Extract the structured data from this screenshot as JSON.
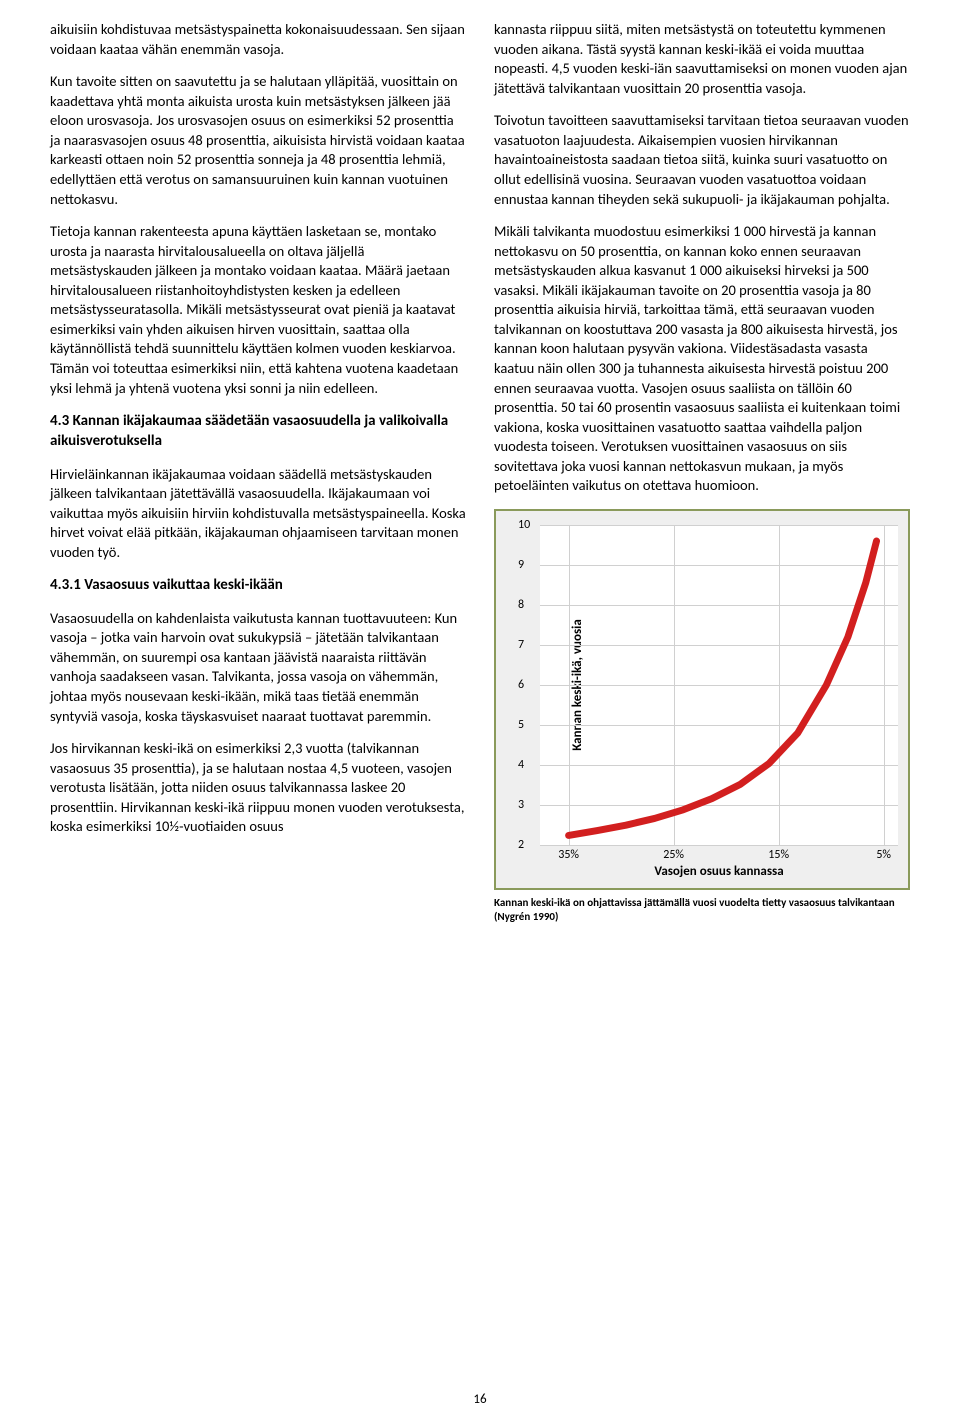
{
  "left": {
    "p1": "aikuisiin kohdistuvaa metsästyspainetta kokonaisuudessaan. Sen sijaan voidaan kaataa vähän enemmän vasoja.",
    "p2": "Kun tavoite sitten on saavutettu ja se halutaan ylläpitää, vuosittain on kaadettava yhtä monta aikuista urosta kuin metsästyksen jälkeen jää eloon urosvasoja. Jos urosvasojen osuus on esimerkiksi 52 prosenttia ja naarasvasojen osuus 48 prosenttia, aikuisista hirvistä voidaan kaataa karkeasti ottaen noin 52 prosenttia sonneja ja 48 prosenttia lehmiä, edellyttäen että verotus on samansuuruinen kuin kannan vuotuinen nettokasvu.",
    "p3": "Tietoja kannan rakenteesta apuna käyttäen lasketaan se, montako urosta ja naarasta hirvitalousalueella on oltava jäljellä metsästyskauden jälkeen ja montako voidaan kaataa. Määrä jaetaan hirvitalousalueen riistanhoitoyhdistysten kesken ja edelleen metsästysseuratasolla. Mikäli metsästysseurat ovat pieniä ja kaatavat esimerkiksi vain yhden aikuisen hirven vuosittain, saattaa olla käytännöllistä tehdä suunnittelu käyttäen kolmen vuoden keskiarvoa. Tämän voi toteuttaa esimerkiksi niin, että kahtena vuotena kaadetaan yksi lehmä ja yhtenä vuotena yksi sonni ja niin edelleen.",
    "h43": "4.3 Kannan ikäjakaumaa säädetään vasaosuudella ja valikoivalla aikuisverotuksella",
    "p4": "Hirvieläinkannan ikäjakaumaa voidaan säädellä metsästyskauden jälkeen talvikantaan jätettävällä vasaosuudella. Ikäjakaumaan voi vaikuttaa myös aikuisiin hirviin kohdistuvalla metsästyspaineella. Koska hirvet voivat elää pitkään, ikäjakauman ohjaamiseen tarvitaan monen vuoden työ.",
    "h431": "4.3.1 Vasaosuus vaikuttaa keski-ikään",
    "p5": "Vasaosuudella on kahdenlaista vaikutusta kannan tuottavuuteen: Kun vasoja – jotka vain harvoin ovat sukukypsiä – jätetään talvikantaan vähemmän, on suurempi osa kantaan jäävistä naaraista riittävän vanhoja saadakseen vasan. Talvikanta, jossa vasoja on vähemmän, johtaa myös nousevaan keski-ikään, mikä taas tietää enemmän syntyviä vasoja, koska täyskasvuiset naaraat tuottavat paremmin.",
    "p6": "Jos hirvikannan keski-ikä on esimerkiksi 2,3 vuotta (talvikannan vasaosuus 35 prosenttia), ja se halutaan nostaa 4,5 vuoteen, vasojen verotusta lisätään, jotta niiden osuus talvikannassa laskee 20 prosenttiin. Hirvikannan keski-ikä riippuu monen vuoden verotuksesta, koska esimerkiksi 10½-vuotiaiden osuus"
  },
  "right": {
    "p1": "kannasta riippuu siitä, miten metsästystä on toteutettu kymmenen vuoden aikana. Tästä syystä kannan keski-ikää ei voida muuttaa nopeasti. 4,5 vuoden keski-iän saavuttamiseksi on monen vuoden ajan jätettävä talvikantaan vuosittain 20 prosenttia vasoja.",
    "p2": "Toivotun tavoitteen saavuttamiseksi tarvitaan tietoa seuraavan vuoden vasatuoton laajuudesta. Aikaisempien vuosien hirvikannan havaintoaineistosta saadaan tietoa siitä, kuinka suuri vasatuotto on ollut edellisinä vuosina. Seuraavan vuoden vasatuottoa voidaan ennustaa kannan tiheyden sekä sukupuoli- ja ikäjakauman pohjalta.",
    "p3": "Mikäli talvikanta muodostuu esimerkiksi 1 000 hirvestä ja kannan nettokasvu on 50 prosenttia, on kannan koko ennen seuraavan metsästyskauden alkua kasvanut 1 000 aikuiseksi hirveksi ja 500 vasaksi. Mikäli ikäjakauman tavoite on 20 prosenttia vasoja ja 80 prosenttia aikuisia hirviä, tarkoittaa tämä, että seuraavan vuoden talvikannan on koostuttava 200 vasasta ja 800 aikuisesta hirvestä, jos kannan koon halutaan pysyvän vakiona. Viidestäsadasta vasasta kaatuu näin ollen 300 ja tuhannesta aikuisesta hirvestä poistuu 200 ennen seuraavaa vuotta. Vasojen osuus saaliista on tällöin 60 prosenttia. 50 tai 60 prosentin vasaosuus saaliista ei kuitenkaan toimi vakiona, koska vuosittainen vasatuotto saattaa vaihdella paljon vuodesta toiseen. Verotuksen vuosittainen vasaosuus on siis sovitettava joka vuosi kannan nettokasvun mukaan, ja myös petoeläinten vaikutus on otettava huomioon."
  },
  "chart": {
    "type": "line",
    "ylabel": "Kannan keski-ikä, vuosia",
    "xlabel": "Vasojen osuus kannassa",
    "ylim": [
      2,
      10
    ],
    "yticks": [
      2,
      3,
      4,
      5,
      6,
      7,
      8,
      9,
      10
    ],
    "xticks": [
      "35%",
      "25%",
      "15%",
      "5%"
    ],
    "line_color": "#d21f1f",
    "line_width": 7,
    "background": "#ffffff",
    "box_border": "#8a9a5b",
    "box_fill": "#efefef",
    "grid_color": "#d0d0d0",
    "curve_points": [
      [
        8,
        97
      ],
      [
        16,
        95.5
      ],
      [
        24,
        93.8
      ],
      [
        32,
        91.7
      ],
      [
        40,
        89
      ],
      [
        48,
        85.5
      ],
      [
        56,
        81
      ],
      [
        64,
        74.5
      ],
      [
        72,
        65
      ],
      [
        80,
        50
      ],
      [
        86,
        35
      ],
      [
        91,
        18
      ],
      [
        94,
        5
      ]
    ]
  },
  "caption": "Kannan keski-ikä on ohjattavissa jättämällä vuosi vuodelta tietty vasaosuus talvikantaan (Nygrén 1990)",
  "page": "16"
}
